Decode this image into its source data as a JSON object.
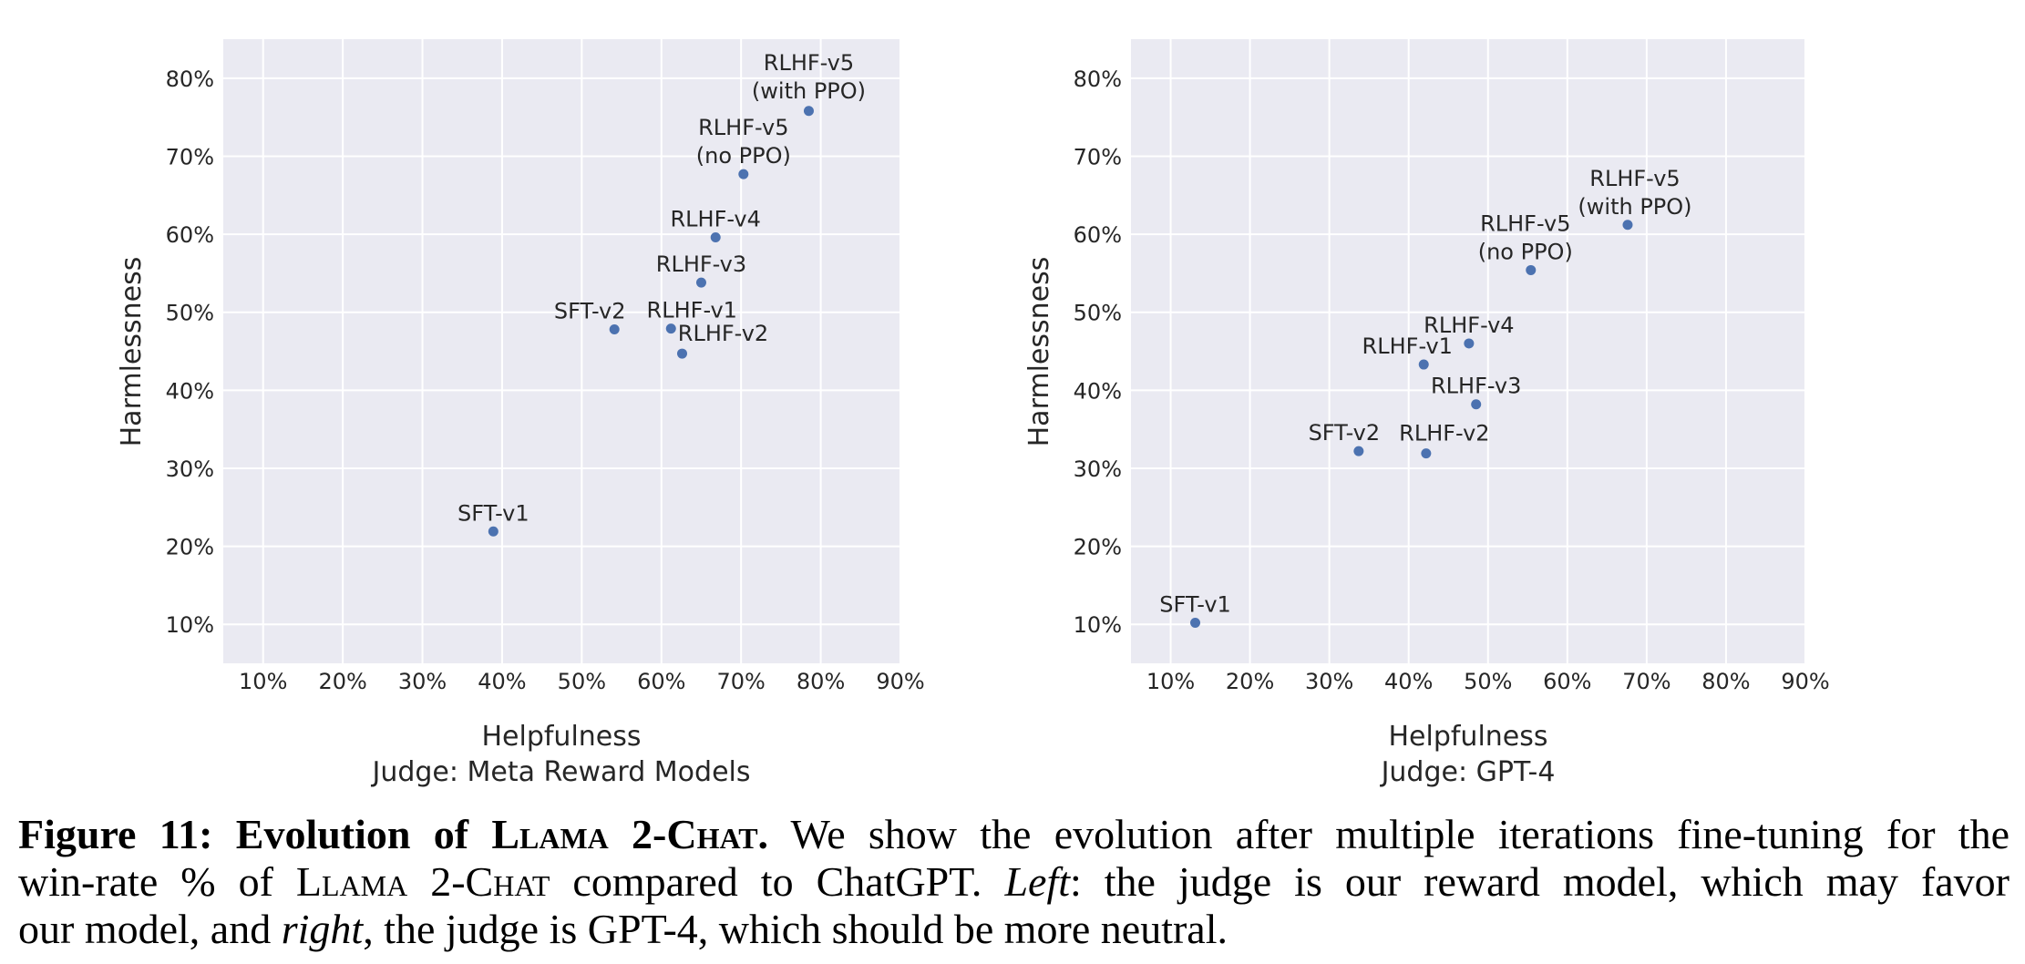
{
  "chart_data": [
    {
      "type": "scatter",
      "xlabel": "Helpfulness",
      "judge": "Judge: Meta Reward Models",
      "ylabel": "Harmlessness",
      "xlim": [
        5,
        90
      ],
      "ylim": [
        5,
        85
      ],
      "xticks": [
        10,
        20,
        30,
        40,
        50,
        60,
        70,
        80,
        90
      ],
      "xtick_labels": [
        "10%",
        "20%",
        "30%",
        "40%",
        "50%",
        "60%",
        "70%",
        "80%",
        "90%"
      ],
      "yticks": [
        10,
        20,
        30,
        40,
        50,
        60,
        70,
        80
      ],
      "ytick_labels": [
        "10%",
        "20%",
        "30%",
        "40%",
        "50%",
        "60%",
        "70%",
        "80%"
      ],
      "grid": true,
      "color": "#4c72b0",
      "plot_background": "#eaeaf2",
      "grid_color": "#ffffff",
      "points": [
        {
          "label": "SFT-v1",
          "x": 38.9,
          "y": 21.9
        },
        {
          "label": "SFT-v2",
          "x": 54.1,
          "y": 47.8
        },
        {
          "label": "RLHF-v1",
          "x": 61.2,
          "y": 47.9
        },
        {
          "label": "RLHF-v2",
          "x": 62.6,
          "y": 44.7
        },
        {
          "label": "RLHF-v3",
          "x": 65.0,
          "y": 53.8
        },
        {
          "label": "RLHF-v4",
          "x": 66.8,
          "y": 59.6
        },
        {
          "label": [
            "RLHF-v5",
            "(no PPO)"
          ],
          "x": 70.3,
          "y": 67.7
        },
        {
          "label": [
            "RLHF-v5",
            "(with PPO)"
          ],
          "x": 78.5,
          "y": 75.8
        }
      ]
    },
    {
      "type": "scatter",
      "xlabel": "Helpfulness",
      "judge": "Judge: GPT-4",
      "ylabel": "Harmlessness",
      "xlim": [
        5,
        90
      ],
      "ylim": [
        5,
        85
      ],
      "xticks": [
        10,
        20,
        30,
        40,
        50,
        60,
        70,
        80,
        90
      ],
      "xtick_labels": [
        "10%",
        "20%",
        "30%",
        "40%",
        "50%",
        "60%",
        "70%",
        "80%",
        "90%"
      ],
      "yticks": [
        10,
        20,
        30,
        40,
        50,
        60,
        70,
        80
      ],
      "ytick_labels": [
        "10%",
        "20%",
        "30%",
        "40%",
        "50%",
        "60%",
        "70%",
        "80%"
      ],
      "grid": true,
      "color": "#4c72b0",
      "plot_background": "#eaeaf2",
      "grid_color": "#ffffff",
      "points": [
        {
          "label": "SFT-v1",
          "x": 13.1,
          "y": 10.2
        },
        {
          "label": "SFT-v2",
          "x": 33.7,
          "y": 32.2
        },
        {
          "label": "RLHF-v1",
          "x": 41.9,
          "y": 43.3
        },
        {
          "label": "RLHF-v2",
          "x": 42.2,
          "y": 31.9
        },
        {
          "label": "RLHF-v3",
          "x": 48.5,
          "y": 38.2
        },
        {
          "label": "RLHF-v4",
          "x": 47.6,
          "y": 46.0
        },
        {
          "label": [
            "RLHF-v5",
            "(no PPO)"
          ],
          "x": 55.4,
          "y": 55.4
        },
        {
          "label": [
            "RLHF-v5",
            "(with PPO)"
          ],
          "x": 67.6,
          "y": 61.2
        }
      ]
    }
  ],
  "caption": {
    "label": "Figure 11: Evolution of ",
    "model_name": "Llama 2-Chat",
    "label_end": ".",
    "line1": " We show the evolution after multiple iterations fine-tuning for the ",
    "line2_a": "win-rate % of ",
    "line2_b": " compared to ChatGPT. ",
    "left": "Left",
    "line2_c": ": the judge is our reward model, which may favor ",
    "line3_a": "our model, and ",
    "right": "right",
    "line3_b": ", the judge is GPT-4, which should be more neutral."
  }
}
